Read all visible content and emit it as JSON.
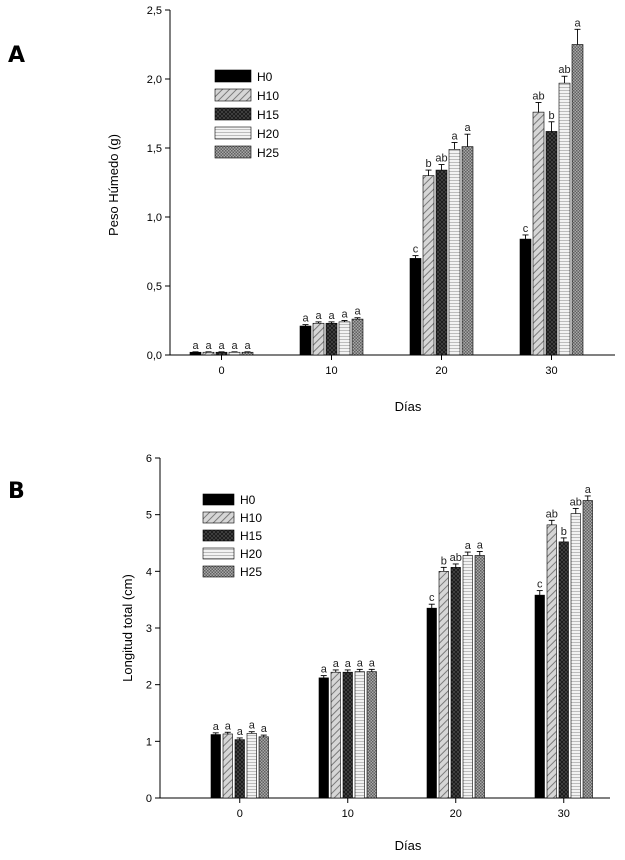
{
  "colors": {
    "H0": "#000000",
    "H10": "#bdbdbd",
    "H15": "#3a3a3a",
    "H20": "#eeeeee",
    "H25": "#8e8e8e"
  },
  "chart_data": [
    {
      "type": "bar",
      "panel_label": "A",
      "title": "",
      "xlabel": "Días",
      "ylabel": "Peso Húmedo (g)",
      "categories": [
        "0",
        "10",
        "20",
        "30"
      ],
      "ylim": [
        0,
        2.5
      ],
      "yticks": [
        "0,0",
        "0,5",
        "1,0",
        "1,5",
        "2,0",
        "2,5"
      ],
      "legend_position": "top-left",
      "series": [
        {
          "name": "H0",
          "pattern": "solid",
          "values": [
            0.02,
            0.21,
            0.7,
            0.84
          ],
          "errors": [
            0.003,
            0.01,
            0.02,
            0.03
          ],
          "labels": [
            "a",
            "a",
            "c",
            "c"
          ]
        },
        {
          "name": "H10",
          "pattern": "diag",
          "values": [
            0.02,
            0.23,
            1.3,
            1.76
          ],
          "errors": [
            0.003,
            0.01,
            0.04,
            0.07
          ],
          "labels": [
            "a",
            "a",
            "b",
            "ab"
          ]
        },
        {
          "name": "H15",
          "pattern": "cross",
          "values": [
            0.02,
            0.23,
            1.34,
            1.62
          ],
          "errors": [
            0.003,
            0.01,
            0.04,
            0.07
          ],
          "labels": [
            "a",
            "a",
            "ab",
            "b"
          ]
        },
        {
          "name": "H20",
          "pattern": "horiz",
          "values": [
            0.02,
            0.24,
            1.49,
            1.97
          ],
          "errors": [
            0.003,
            0.01,
            0.05,
            0.05
          ],
          "labels": [
            "a",
            "a",
            "a",
            "ab"
          ]
        },
        {
          "name": "H25",
          "pattern": "dots",
          "values": [
            0.02,
            0.26,
            1.51,
            2.25
          ],
          "errors": [
            0.003,
            0.01,
            0.09,
            0.11
          ],
          "labels": [
            "a",
            "a",
            "a",
            "a"
          ]
        }
      ]
    },
    {
      "type": "bar",
      "panel_label": "B",
      "title": "",
      "xlabel": "Días",
      "ylabel": "Longitud total (cm)",
      "categories": [
        "0",
        "10",
        "20",
        "30"
      ],
      "ylim": [
        0,
        6
      ],
      "yticks": [
        "0",
        "1",
        "2",
        "3",
        "4",
        "5",
        "6"
      ],
      "legend_position": "top-left",
      "series": [
        {
          "name": "H0",
          "pattern": "solid",
          "values": [
            1.12,
            2.12,
            3.35,
            3.58
          ],
          "errors": [
            0.03,
            0.04,
            0.07,
            0.08
          ],
          "labels": [
            "a",
            "a",
            "c",
            "c"
          ]
        },
        {
          "name": "H10",
          "pattern": "diag",
          "values": [
            1.13,
            2.22,
            4.0,
            4.82
          ],
          "errors": [
            0.03,
            0.04,
            0.07,
            0.08
          ],
          "labels": [
            "a",
            "a",
            "b",
            "ab"
          ]
        },
        {
          "name": "H15",
          "pattern": "cross",
          "values": [
            1.03,
            2.22,
            4.07,
            4.52
          ],
          "errors": [
            0.03,
            0.04,
            0.06,
            0.07
          ],
          "labels": [
            "a",
            "a",
            "ab",
            "b"
          ]
        },
        {
          "name": "H20",
          "pattern": "horiz",
          "values": [
            1.14,
            2.23,
            4.28,
            5.02
          ],
          "errors": [
            0.03,
            0.04,
            0.06,
            0.09
          ],
          "labels": [
            "a",
            "a",
            "a",
            "ab"
          ]
        },
        {
          "name": "H25",
          "pattern": "dots",
          "values": [
            1.08,
            2.23,
            4.28,
            5.25
          ],
          "errors": [
            0.03,
            0.04,
            0.07,
            0.08
          ],
          "labels": [
            "a",
            "a",
            "a",
            "a"
          ]
        }
      ]
    }
  ]
}
